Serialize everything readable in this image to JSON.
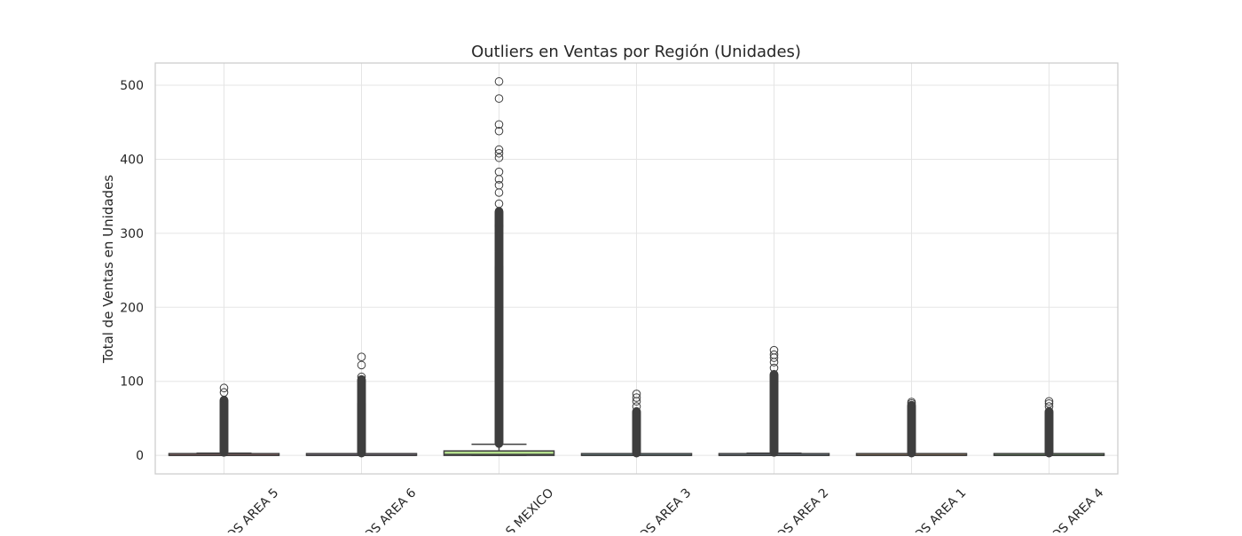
{
  "chart_data": {
    "type": "box",
    "title": "Outliers en Ventas por Región (Unidades)",
    "xlabel": "",
    "ylabel": "Total de Ventas en Unidades",
    "ylim": [
      -25,
      530
    ],
    "yticks": [
      0,
      100,
      200,
      300,
      400,
      500
    ],
    "grid": true,
    "categories": [
      "OS AREA 5",
      "OS AREA 6",
      "S MEXICO",
      "OS AREA 3",
      "OS AREA 2",
      "OS AREA 1",
      "OS AREA 4"
    ],
    "boxes": [
      {
        "category": "OS AREA 5",
        "q1": 0,
        "median": 0,
        "q3": 1,
        "whisker_low": 0,
        "whisker_high": 3,
        "outlier_range": [
          4,
          75
        ],
        "outliers": [
          85,
          91
        ],
        "color": "#ff9896"
      },
      {
        "category": "OS AREA 6",
        "q1": 0,
        "median": 0,
        "q3": 1,
        "whisker_low": 0,
        "whisker_high": 2,
        "outlier_range": [
          3,
          103
        ],
        "outliers": [
          106,
          122,
          133
        ],
        "color": "#c5b0d5"
      },
      {
        "category": "S MEXICO",
        "q1": 0,
        "median": 1,
        "q3": 6,
        "whisker_low": 0,
        "whisker_high": 15,
        "outlier_range": [
          16,
          330
        ],
        "outliers": [
          340,
          355,
          365,
          373,
          383,
          402,
          408,
          413,
          438,
          447,
          482,
          505
        ],
        "color": "#b5e08e"
      },
      {
        "category": "OS AREA 3",
        "q1": 0,
        "median": 0,
        "q3": 1,
        "whisker_low": 0,
        "whisker_high": 2,
        "outlier_range": [
          3,
          60
        ],
        "outliers": [
          66,
          73,
          78,
          83
        ],
        "color": "#9edae5"
      },
      {
        "category": "OS AREA 2",
        "q1": 0,
        "median": 0,
        "q3": 1,
        "whisker_low": 0,
        "whisker_high": 3,
        "outlier_range": [
          4,
          110
        ],
        "outliers": [
          118,
          126,
          132,
          136,
          142
        ],
        "color": "#aec7e8"
      },
      {
        "category": "OS AREA 1",
        "q1": 0,
        "median": 0,
        "q3": 1,
        "whisker_low": 0,
        "whisker_high": 2,
        "outlier_range": [
          3,
          68
        ],
        "outliers": [
          70,
          72
        ],
        "color": "#ffbb78"
      },
      {
        "category": "OS AREA 4",
        "q1": 0,
        "median": 0,
        "q3": 1,
        "whisker_low": 0,
        "whisker_high": 2,
        "outlier_range": [
          3,
          60
        ],
        "outliers": [
          66,
          70,
          73
        ],
        "color": "#98df8a"
      }
    ]
  }
}
